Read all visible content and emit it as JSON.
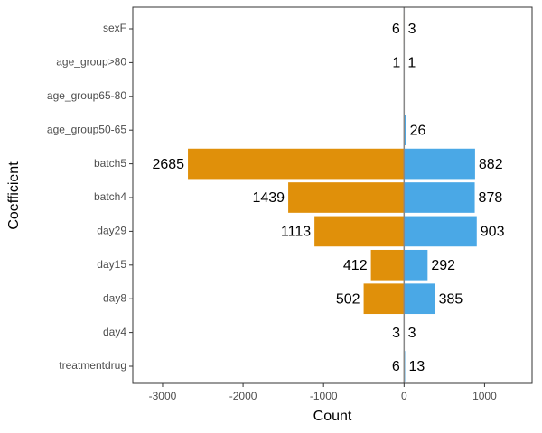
{
  "chart_data": {
    "type": "bar",
    "orientation": "horizontal",
    "x_label": "Count",
    "y_label": "Coefficient",
    "categories": [
      "sexF",
      "age_group>80",
      "age_group65-80",
      "age_group50-65",
      "batch5",
      "batch4",
      "day29",
      "day15",
      "day8",
      "day4",
      "treatmentdrug"
    ],
    "series": [
      {
        "color": "#e0900a",
        "values": [
          -6,
          -1,
          null,
          null,
          -2685,
          -1439,
          -1113,
          -412,
          -502,
          -3,
          -6
        ],
        "value_labels": [
          "6",
          "1",
          null,
          null,
          "2685",
          "1439",
          "1113",
          "412",
          "502",
          "3",
          "6"
        ]
      },
      {
        "color": "#4aa8e6",
        "values": [
          3,
          1,
          null,
          26,
          882,
          878,
          903,
          292,
          385,
          3,
          13
        ],
        "value_labels": [
          "3",
          "1",
          null,
          "26",
          "882",
          "878",
          "903",
          "292",
          "385",
          "3",
          "13"
        ]
      }
    ],
    "xlim": [
      -3370,
      1590
    ],
    "xticks": [
      -3000,
      -2000,
      -1000,
      0,
      1000
    ],
    "grid": false
  }
}
